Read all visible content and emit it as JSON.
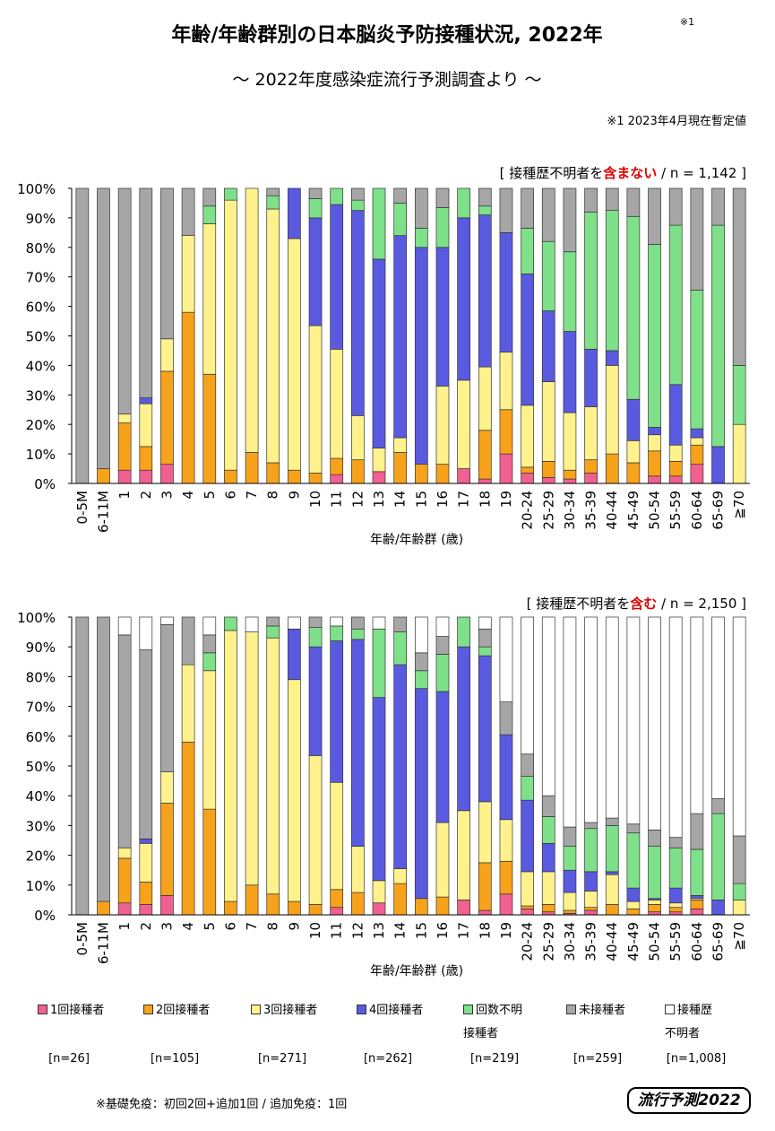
{
  "title": "年齢/年齢群別の日本脳炎予防接種状況, 2022年",
  "title_note": "※1",
  "subtitle": "～ 2022年度感染症流行予測調査より ～",
  "note": "※1  2023年4月現在暫定値",
  "footnote": "※基礎免疫：初回2回+追加1回 / 追加免疫：1回",
  "logo": "流行予測2022",
  "legend_counts": [
    "[n=26]",
    "[n=105]",
    "[n=271]",
    "[n=262]",
    "[n=219]",
    "[n=259]",
    "[n=1,008]"
  ],
  "chart_data": [
    {
      "type": "bar",
      "stacked": true,
      "annotation": [
        "[ 接種歴不明者を",
        "含まない",
        " / n = 1,142 ]"
      ],
      "xlabel": "年齢/年齢群 (歳)",
      "categories": [
        "0-5M",
        "6-11M",
        "1",
        "2",
        "3",
        "4",
        "5",
        "6",
        "7",
        "8",
        "9",
        "10",
        "11",
        "12",
        "13",
        "14",
        "15",
        "16",
        "17",
        "18",
        "19",
        "20-24",
        "25-29",
        "30-34",
        "35-39",
        "40-44",
        "45-49",
        "50-54",
        "55-59",
        "60-64",
        "65-69",
        "≧70"
      ],
      "ylim": [
        0,
        100
      ],
      "yticks": [
        {
          "value": 0,
          "label": "0%"
        },
        {
          "value": 10,
          "label": "10%"
        },
        {
          "value": 20,
          "label": "20%"
        },
        {
          "value": 30,
          "label": "30%"
        },
        {
          "value": 40,
          "label": "40%"
        },
        {
          "value": 50,
          "label": "50%"
        },
        {
          "value": 60,
          "label": "60%"
        },
        {
          "value": 70,
          "label": "70%"
        },
        {
          "value": 80,
          "label": "80%"
        },
        {
          "value": 90,
          "label": "90%"
        },
        {
          "value": 100,
          "label": "100%"
        }
      ],
      "series": [
        {
          "color": "#f06090",
          "values": [
            0,
            0,
            4.5,
            4.5,
            6.5,
            0,
            0,
            0,
            0,
            0,
            0,
            0,
            3,
            0,
            4,
            0,
            0,
            0,
            5,
            1.5,
            10,
            3.5,
            2,
            1.5,
            3.5,
            0,
            0,
            2.5,
            2.5,
            6.5,
            0,
            0
          ]
        },
        {
          "color": "#f7a21b",
          "values": [
            0,
            5,
            16,
            8,
            31.5,
            58,
            37,
            4.5,
            10.5,
            7,
            4.5,
            3.5,
            5.5,
            8,
            0,
            10.5,
            6.5,
            6.5,
            0,
            16.5,
            15,
            2,
            5.5,
            3,
            4.5,
            10,
            7,
            8.5,
            5,
            6.5,
            0,
            0
          ]
        },
        {
          "color": "#fff28c",
          "values": [
            0,
            0,
            3,
            14.5,
            11,
            26,
            51,
            91.5,
            89.5,
            86,
            78.5,
            50,
            37,
            15,
            8,
            5,
            0,
            26.5,
            30,
            21.5,
            19.5,
            21,
            27,
            19.5,
            18,
            30,
            7.5,
            5.5,
            5.5,
            2.5,
            0,
            20
          ]
        },
        {
          "color": "#5a5ae0",
          "values": [
            0,
            0,
            0,
            2,
            0,
            0,
            0,
            0,
            0,
            0,
            17,
            36.5,
            49,
            69.5,
            64,
            68.5,
            73.5,
            47,
            55,
            51.5,
            40.5,
            44.5,
            24,
            27.5,
            19.5,
            5,
            14,
            2.5,
            20.5,
            3,
            12.5,
            0
          ]
        },
        {
          "color": "#7fe08a",
          "values": [
            0,
            0,
            0,
            0,
            0,
            0,
            6,
            4,
            0,
            4.5,
            0,
            6.5,
            5.5,
            3.5,
            24,
            11,
            6.5,
            13.5,
            10,
            3,
            0,
            15.5,
            23.5,
            27,
            46.5,
            47.5,
            62,
            62,
            54,
            47,
            75,
            20
          ]
        },
        {
          "color": "#a6a6a6",
          "values": [
            100,
            95,
            76.5,
            71,
            51,
            16,
            6,
            0,
            0,
            2.5,
            0,
            3.5,
            0,
            4,
            0,
            5,
            13.5,
            6.5,
            0,
            6,
            15,
            13.5,
            18,
            21.5,
            8,
            7.5,
            9.5,
            19,
            12.5,
            34.5,
            12.5,
            60
          ]
        }
      ]
    },
    {
      "type": "bar",
      "stacked": true,
      "annotation": [
        "[ 接種歴不明者を",
        "含む",
        " / n = 2,150 ]"
      ],
      "xlabel": "年齢/年齢群 (歳)",
      "categories": [
        "0-5M",
        "6-11M",
        "1",
        "2",
        "3",
        "4",
        "5",
        "6",
        "7",
        "8",
        "9",
        "10",
        "11",
        "12",
        "13",
        "14",
        "15",
        "16",
        "17",
        "18",
        "19",
        "20-24",
        "25-29",
        "30-34",
        "35-39",
        "40-44",
        "45-49",
        "50-54",
        "55-59",
        "60-64",
        "65-69",
        "≧70"
      ],
      "ylim": [
        0,
        100
      ],
      "yticks": [
        {
          "value": 0,
          "label": "0%"
        },
        {
          "value": 10,
          "label": "10%"
        },
        {
          "value": 20,
          "label": "20%"
        },
        {
          "value": 30,
          "label": "30%"
        },
        {
          "value": 40,
          "label": "40%"
        },
        {
          "value": 50,
          "label": "50%"
        },
        {
          "value": 60,
          "label": "60%"
        },
        {
          "value": 70,
          "label": "70%"
        },
        {
          "value": 80,
          "label": "80%"
        },
        {
          "value": 90,
          "label": "90%"
        },
        {
          "value": 100,
          "label": "100%"
        }
      ],
      "series": [
        {
          "name": "1回接種者",
          "color": "#f06090",
          "values": [
            0,
            0,
            4,
            3.5,
            6.5,
            0,
            0,
            0,
            0,
            0,
            0,
            0,
            2.5,
            0,
            4,
            0,
            0,
            0,
            5,
            1.5,
            7,
            2,
            1,
            0.5,
            1.5,
            0,
            0,
            1,
            1,
            2,
            0,
            0
          ]
        },
        {
          "name": "2回接種者",
          "color": "#f7a21b",
          "values": [
            0,
            4.5,
            15,
            7.5,
            31,
            58,
            35.5,
            4.5,
            10,
            7,
            4.5,
            3.5,
            6,
            7.5,
            0,
            10.5,
            5.5,
            6,
            0,
            16,
            11,
            1,
            2.5,
            1,
            1,
            3.5,
            2,
            2.5,
            1.5,
            3,
            0,
            0
          ]
        },
        {
          "name": "3回接種者",
          "color": "#fff28c",
          "values": [
            0,
            0,
            3.5,
            13,
            10.5,
            26,
            46.5,
            91,
            85,
            86,
            74.5,
            50,
            36,
            15.5,
            7.5,
            5,
            0,
            25,
            30,
            20.5,
            14,
            11.5,
            11,
            6,
            5.5,
            10,
            2.5,
            1.5,
            1.5,
            0.5,
            0,
            5
          ]
        },
        {
          "name": "4回接種者",
          "color": "#5a5ae0",
          "values": [
            0,
            0,
            0,
            1.5,
            0,
            0,
            0,
            0,
            0,
            0,
            17,
            36.5,
            47.5,
            69.5,
            61.5,
            68.5,
            70.5,
            44,
            55,
            49,
            28.5,
            24,
            9.5,
            7.5,
            6.5,
            1,
            4.5,
            0.5,
            5,
            1,
            5,
            0
          ]
        },
        {
          "name": "回数不明\n接種者",
          "color": "#7fe08a",
          "values": [
            0,
            0,
            0,
            0,
            0,
            0,
            6,
            4.5,
            0,
            4,
            0,
            6.5,
            5,
            3.5,
            23,
            11,
            6,
            12.5,
            10,
            3,
            0,
            8,
            9,
            8,
            14.5,
            15.5,
            18.5,
            17.5,
            13.5,
            15.5,
            29,
            5.5
          ]
        },
        {
          "name": "未接種者",
          "color": "#a6a6a6",
          "values": [
            100,
            95.5,
            71.5,
            63.5,
            49.5,
            16,
            6,
            0,
            0,
            3,
            0,
            3.5,
            0,
            4,
            0,
            5,
            6,
            6,
            0,
            6,
            11,
            7.5,
            7,
            6.5,
            2,
            2.5,
            3,
            5.5,
            3.5,
            12,
            5,
            16
          ]
        },
        {
          "name": "接種歴\n不明者",
          "color": "#ffffff",
          "values": [
            0,
            0,
            6,
            11,
            2.5,
            0,
            6,
            0,
            5,
            0,
            4,
            0,
            3,
            0,
            4,
            0,
            12,
            6.5,
            0,
            4,
            28.5,
            46,
            60,
            70.5,
            69,
            67.5,
            69.5,
            71.5,
            74,
            66,
            61,
            73.5
          ]
        }
      ]
    }
  ]
}
